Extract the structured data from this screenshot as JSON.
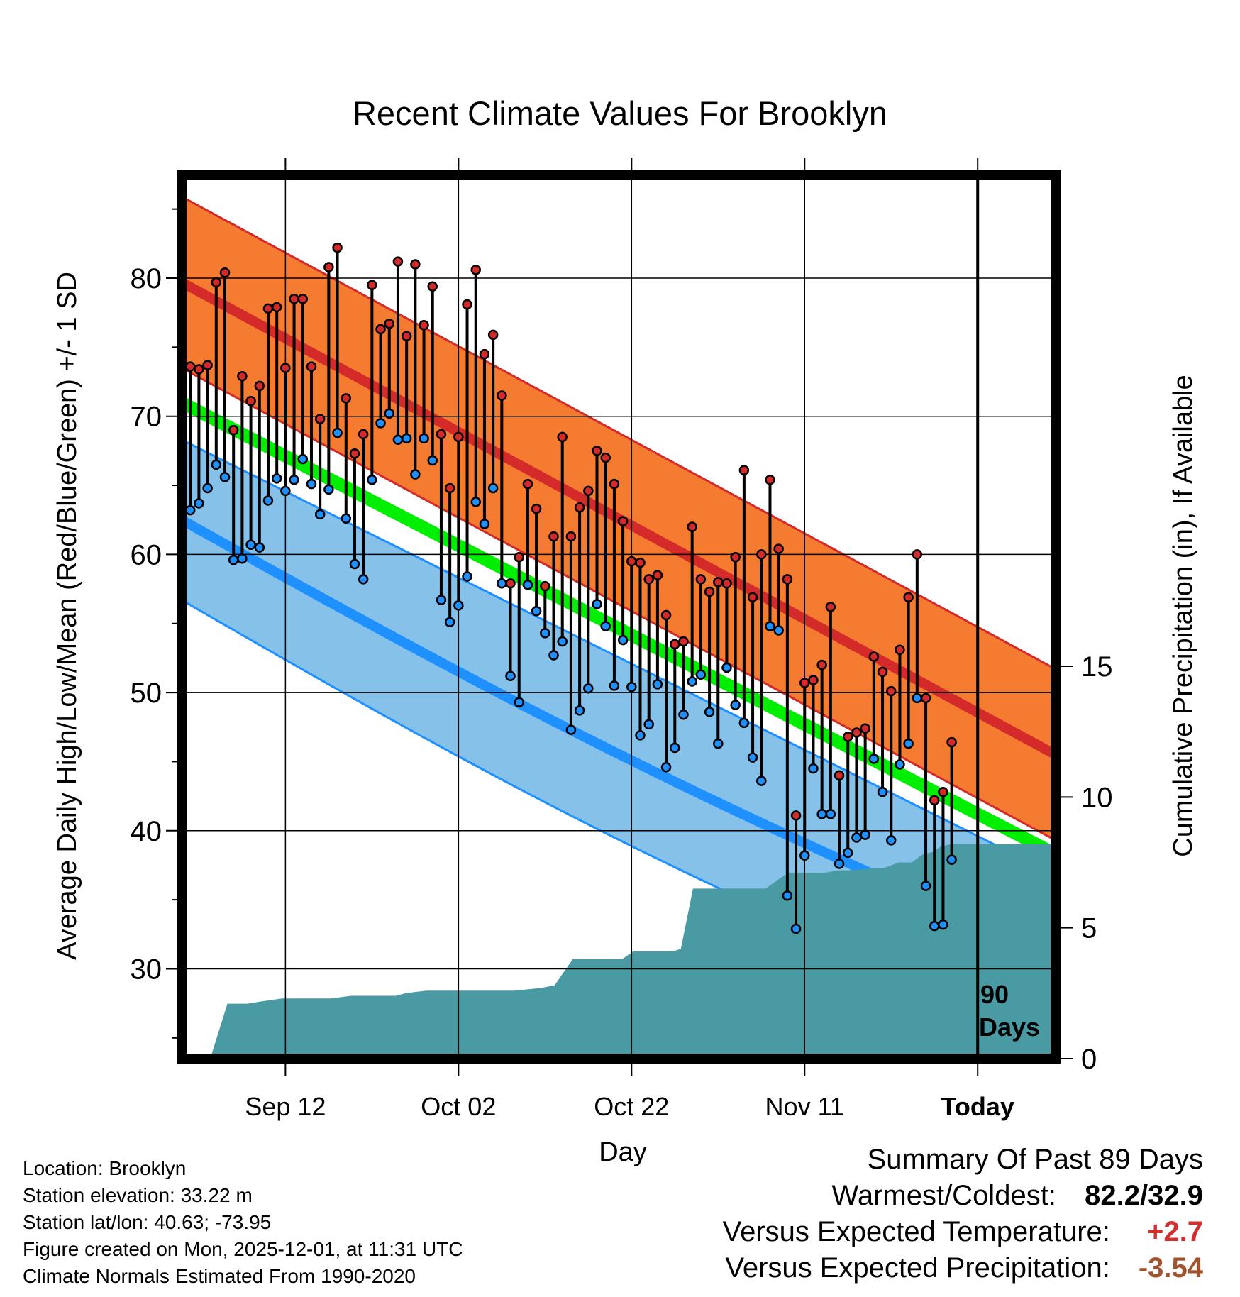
{
  "figure": {
    "title": "Recent Climate Values For Brooklyn",
    "ylabel_left": "Average Daily High/Low/Mean (Red/Blue/Green) +/- 1 SD",
    "ylabel_right": "Cumulative Precipitation (in), If Available",
    "xlabel": "Day",
    "today_label": "Today",
    "days_label_line1": "90",
    "days_label_line2": "Days"
  },
  "chart_data": {
    "type": "line",
    "title": "Recent Climate Values For Brooklyn",
    "xlabel": "Day",
    "ylabel": "Average Daily High/Low/Mean (Red/Blue/Green) +/- 1 SD",
    "y2label": "Cumulative Precipitation (in), If Available",
    "xlim": [
      -1,
      100
    ],
    "ylim": [
      23.5,
      87.5
    ],
    "y2lim": [
      0,
      33.8
    ],
    "x_ticks": [
      {
        "day": 11,
        "label": "Sep 12"
      },
      {
        "day": 31,
        "label": "Oct 02"
      },
      {
        "day": 51,
        "label": "Oct 22"
      },
      {
        "day": 71,
        "label": "Nov 11"
      },
      {
        "day": 91,
        "label": "Today"
      }
    ],
    "y_ticks": [
      30,
      40,
      50,
      60,
      70,
      80
    ],
    "y2_ticks": [
      0,
      5,
      10,
      15
    ],
    "today_day": 91,
    "normals": {
      "high_mean": {
        "start": 79.7,
        "end": 45.5
      },
      "high_sd": 6.2,
      "mean": {
        "start": 71.0,
        "end": 38.3
      },
      "low_mean": {
        "start": 62.5,
        "end": 31.0
      },
      "low_sd": 5.8
    },
    "highs": [
      73.6,
      73.4,
      73.7,
      79.7,
      80.4,
      69.0,
      72.9,
      71.1,
      72.2,
      77.8,
      77.9,
      73.5,
      78.5,
      78.5,
      73.6,
      69.8,
      80.8,
      82.2,
      71.3,
      67.3,
      68.7,
      79.5,
      76.3,
      76.7,
      81.2,
      75.8,
      81.0,
      76.6,
      79.4,
      68.7,
      64.8,
      68.5,
      78.1,
      80.6,
      74.5,
      75.9,
      71.5,
      57.9,
      59.8,
      65.1,
      63.3,
      57.7,
      61.3,
      68.5,
      61.3,
      63.4,
      64.6,
      67.5,
      67.0,
      65.1,
      62.4,
      59.5,
      59.4,
      58.2,
      58.5,
      55.6,
      53.5,
      53.7,
      62.0,
      58.2,
      57.3,
      58.0,
      57.9,
      59.8,
      66.1,
      56.9,
      60.0,
      65.4,
      60.4,
      58.2,
      41.1,
      50.7,
      50.9,
      52.0,
      56.2,
      44.0,
      46.8,
      47.1,
      47.4,
      52.6,
      51.5,
      50.1,
      53.1,
      56.9,
      60.0,
      49.6,
      42.2,
      42.8,
      46.4
    ],
    "lows": [
      63.2,
      63.7,
      64.8,
      66.5,
      65.6,
      59.6,
      59.7,
      60.7,
      60.5,
      63.9,
      65.5,
      64.6,
      65.4,
      66.9,
      65.1,
      62.9,
      64.7,
      68.8,
      62.6,
      59.3,
      58.2,
      65.4,
      69.5,
      70.2,
      68.3,
      68.4,
      65.8,
      68.4,
      66.8,
      56.7,
      55.1,
      56.3,
      58.4,
      63.8,
      62.2,
      64.8,
      57.9,
      51.2,
      49.3,
      57.8,
      55.9,
      54.3,
      52.7,
      53.7,
      47.3,
      48.7,
      50.3,
      56.4,
      54.8,
      50.5,
      53.8,
      50.4,
      46.9,
      47.7,
      50.6,
      44.6,
      46.0,
      48.4,
      50.8,
      51.3,
      48.6,
      46.3,
      51.8,
      49.1,
      47.8,
      45.3,
      43.6,
      54.8,
      54.5,
      35.3,
      32.9,
      38.2,
      44.5,
      41.2,
      41.2,
      37.6,
      38.4,
      39.5,
      39.7,
      45.2,
      42.8,
      39.3,
      44.8,
      46.3,
      49.6,
      36.0,
      33.1,
      33.2,
      37.9
    ],
    "precip_cumulative": [
      [
        2.3,
        0.0
      ],
      [
        4.3,
        2.1
      ],
      [
        6.6,
        2.1
      ],
      [
        8.5,
        2.2
      ],
      [
        10.6,
        2.3
      ],
      [
        16.2,
        2.3
      ],
      [
        18.6,
        2.4
      ],
      [
        21.5,
        2.4
      ],
      [
        23.8,
        2.4
      ],
      [
        24.9,
        2.5
      ],
      [
        27.3,
        2.6
      ],
      [
        30.4,
        2.6
      ],
      [
        35.3,
        2.6
      ],
      [
        37.5,
        2.6
      ],
      [
        40.5,
        2.7
      ],
      [
        42.1,
        2.8
      ],
      [
        44.2,
        3.8
      ],
      [
        46.1,
        3.8
      ],
      [
        49.9,
        3.8
      ],
      [
        51.2,
        4.1
      ],
      [
        53.5,
        4.1
      ],
      [
        55.8,
        4.1
      ],
      [
        56.7,
        4.2
      ],
      [
        58.1,
        6.5
      ],
      [
        59.3,
        6.5
      ],
      [
        66.5,
        6.5
      ],
      [
        68.2,
        6.9
      ],
      [
        69.1,
        7.1
      ],
      [
        73.2,
        7.1
      ],
      [
        74.9,
        7.2
      ],
      [
        76.0,
        7.2
      ],
      [
        80.3,
        7.3
      ],
      [
        81.9,
        7.5
      ],
      [
        83.4,
        7.5
      ],
      [
        84.6,
        7.8
      ],
      [
        85.8,
        7.9
      ],
      [
        86.7,
        8.1
      ],
      [
        87.9,
        8.2
      ],
      [
        100,
        8.2
      ]
    ]
  },
  "info": {
    "location": "Location: Brooklyn",
    "elevation": "Station elevation: 33.22 m",
    "latlon": "Station lat/lon: 40.63; -73.95",
    "created": "Figure created on Mon, 2025-12-01, at 11:31 UTC",
    "normals": "Climate Normals Estimated From 1990-2020"
  },
  "summary": {
    "title": "Summary Of Past 89 Days",
    "warmest_label": "Warmest/Coldest:",
    "warmest_value": "82.2/32.9",
    "temp_label": "Versus Expected Temperature:",
    "temp_value": "+2.7",
    "precip_label": "Versus Expected Precipitation:",
    "precip_value": "-3.54"
  },
  "colors": {
    "high_band": "#f47b30",
    "high_line": "#d42a2a",
    "low_band": "#85c1e8",
    "low_line": "#1e90ff",
    "mean_line": "#00ee00",
    "precip_fill": "#4a9aa3",
    "high_dot": "#d42a2a",
    "low_dot": "#1e90ff",
    "temp_value": "#d32f2f",
    "precip_value": "#a0522d"
  }
}
